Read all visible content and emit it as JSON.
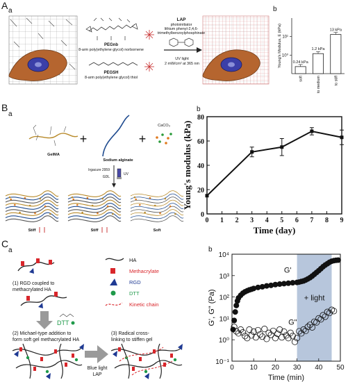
{
  "panels": {
    "A": {
      "label": "A",
      "sub_a": "a",
      "sub_b": "b",
      "pegnb_title": "PEGnb",
      "pegnb_desc": "8-arm poly(ethylene glycol) norbornene",
      "pegsh_title": "PEGSH",
      "pegsh_desc": "8-arm poly(ethylene glycol) thiol",
      "lap_title": "LAP",
      "lap_line1": "photoinitiator",
      "lap_line2": "lithium phenyl-2,4,6-",
      "lap_line3": "trimethylbenzoylphosphinate",
      "uv_line1": "UV light",
      "uv_line2": "2 mW/cm² at 365 nm"
    },
    "B": {
      "label": "B",
      "sub_a": "a",
      "sub_b": "b",
      "gelma": "GelMA",
      "alginate": "Sodium alginate",
      "caco3": "CaCO₃",
      "irgacure": "Irgacure 2959",
      "gdl": "GDL",
      "uv": "UV",
      "stiff1": "Stiff",
      "stiff2": "Stiff",
      "soft": "Soft"
    },
    "C": {
      "label": "C",
      "sub_a": "a",
      "sub_b": "b",
      "step1": "(1) RGD coupled to",
      "step1b": "methacrylated HA",
      "step2": "(2) Michael-type addition to",
      "step2b": "form soft gel methacrylated HA",
      "step3": "(3) Radical cross-",
      "step3b": "linking to stiffen gel",
      "dtt_label": "DTT",
      "legend": [
        "HA",
        "Methacrylate",
        "RGD",
        "DTT",
        "Kinetic chain"
      ],
      "blue_light": "Blue light",
      "lap": "LAP",
      "plus_light": "+ light",
      "g_prime": "G'",
      "g_dprime": "G\""
    }
  },
  "colors": {
    "methacrylate": "#d9262b",
    "rgd": "#1f3a93",
    "dtt": "#1f9a4a",
    "light_band": "#b7c6dc",
    "cell": "#b5652f",
    "nucleus": "#3b3fa8"
  },
  "chart_data": [
    {
      "type": "bar",
      "panel": "A-b",
      "categories": [
        "soft",
        "to medium",
        "to stiff"
      ],
      "values": [
        0.24,
        1.2,
        13
      ],
      "value_labels": [
        "0.24 kPa",
        "1.2 kPa",
        "13 kPa"
      ],
      "ylabel": "Young's Modulus, E (kPa)",
      "yscale": "log",
      "ylim": [
        0.1,
        100
      ],
      "yticks": [
        1,
        10
      ],
      "ytick_labels": [
        "10⁰",
        "10¹"
      ]
    },
    {
      "type": "line",
      "panel": "B-b",
      "x": [
        0,
        3,
        5,
        7,
        9
      ],
      "values": [
        15,
        51,
        55,
        68,
        63
      ],
      "errors": [
        0,
        4,
        7,
        3,
        6
      ],
      "xlabel": "Time (day)",
      "ylabel": "Young's modulus (kPa)",
      "xlim": [
        0,
        9
      ],
      "ylim": [
        0,
        80
      ],
      "xticks": [
        0,
        1,
        2,
        3,
        4,
        5,
        6,
        7,
        8,
        9
      ],
      "yticks": [
        0,
        20,
        40,
        60,
        80
      ]
    },
    {
      "type": "scatter",
      "panel": "C-b",
      "xlabel": "Time (min)",
      "ylabel": "G', G\" (Pa)",
      "yscale": "log",
      "xlim": [
        0,
        50
      ],
      "ylim": [
        0.1,
        10000
      ],
      "xticks": [
        0,
        10,
        20,
        30,
        40,
        50
      ],
      "ytick_labels": [
        "10⁻¹",
        "10⁰",
        "10¹",
        "10²",
        "10³",
        "10⁴"
      ],
      "light_on_range": [
        30,
        46
      ],
      "series": [
        {
          "name": "G'",
          "marker": "filled",
          "x": [
            0.5,
            1,
            1.5,
            2,
            2.5,
            3,
            4,
            5,
            6,
            7,
            8,
            9,
            10,
            12,
            14,
            16,
            18,
            20,
            22,
            24,
            26,
            28,
            30,
            31,
            32,
            33,
            34,
            35,
            36,
            37,
            38,
            39,
            40,
            41,
            42,
            43,
            44,
            45,
            46,
            47,
            48,
            49
          ],
          "y": [
            3,
            8,
            20,
            40,
            65,
            90,
            120,
            150,
            175,
            195,
            215,
            230,
            250,
            280,
            300,
            330,
            350,
            380,
            400,
            420,
            440,
            460,
            480,
            500,
            530,
            560,
            620,
            700,
            800,
            950,
            1150,
            1400,
            1700,
            2100,
            2600,
            3100,
            3600,
            4200,
            4700,
            5000,
            5200,
            5300
          ]
        },
        {
          "name": "G\"",
          "marker": "open",
          "x": [
            1,
            2,
            3,
            4,
            5,
            6,
            7,
            8,
            9,
            10,
            11,
            12,
            13,
            14,
            15,
            16,
            17,
            18,
            19,
            20,
            21,
            22,
            23,
            24,
            25,
            26,
            27,
            28,
            29,
            30,
            31,
            32,
            33,
            34,
            35,
            36,
            37,
            38,
            39,
            40,
            41,
            42,
            43,
            44,
            45,
            46,
            47
          ],
          "y": [
            4,
            2.5,
            2,
            3,
            2.2,
            1.5,
            1.2,
            3,
            1.6,
            2.4,
            1.3,
            2.8,
            1.8,
            1.4,
            3.2,
            1.1,
            2.1,
            1.7,
            2.6,
            1.2,
            1.9,
            3,
            1.3,
            2.4,
            1.6,
            1.2,
            2.1,
            1.5,
            0.8,
            1.2,
            2.5,
            2.0,
            3.0,
            2.6,
            4.0,
            5.0,
            3.8,
            7.0,
            6.5,
            10.0,
            9.0,
            14.0,
            12.0,
            20.0,
            18.0,
            25.0,
            22.0
          ]
        }
      ]
    }
  ]
}
